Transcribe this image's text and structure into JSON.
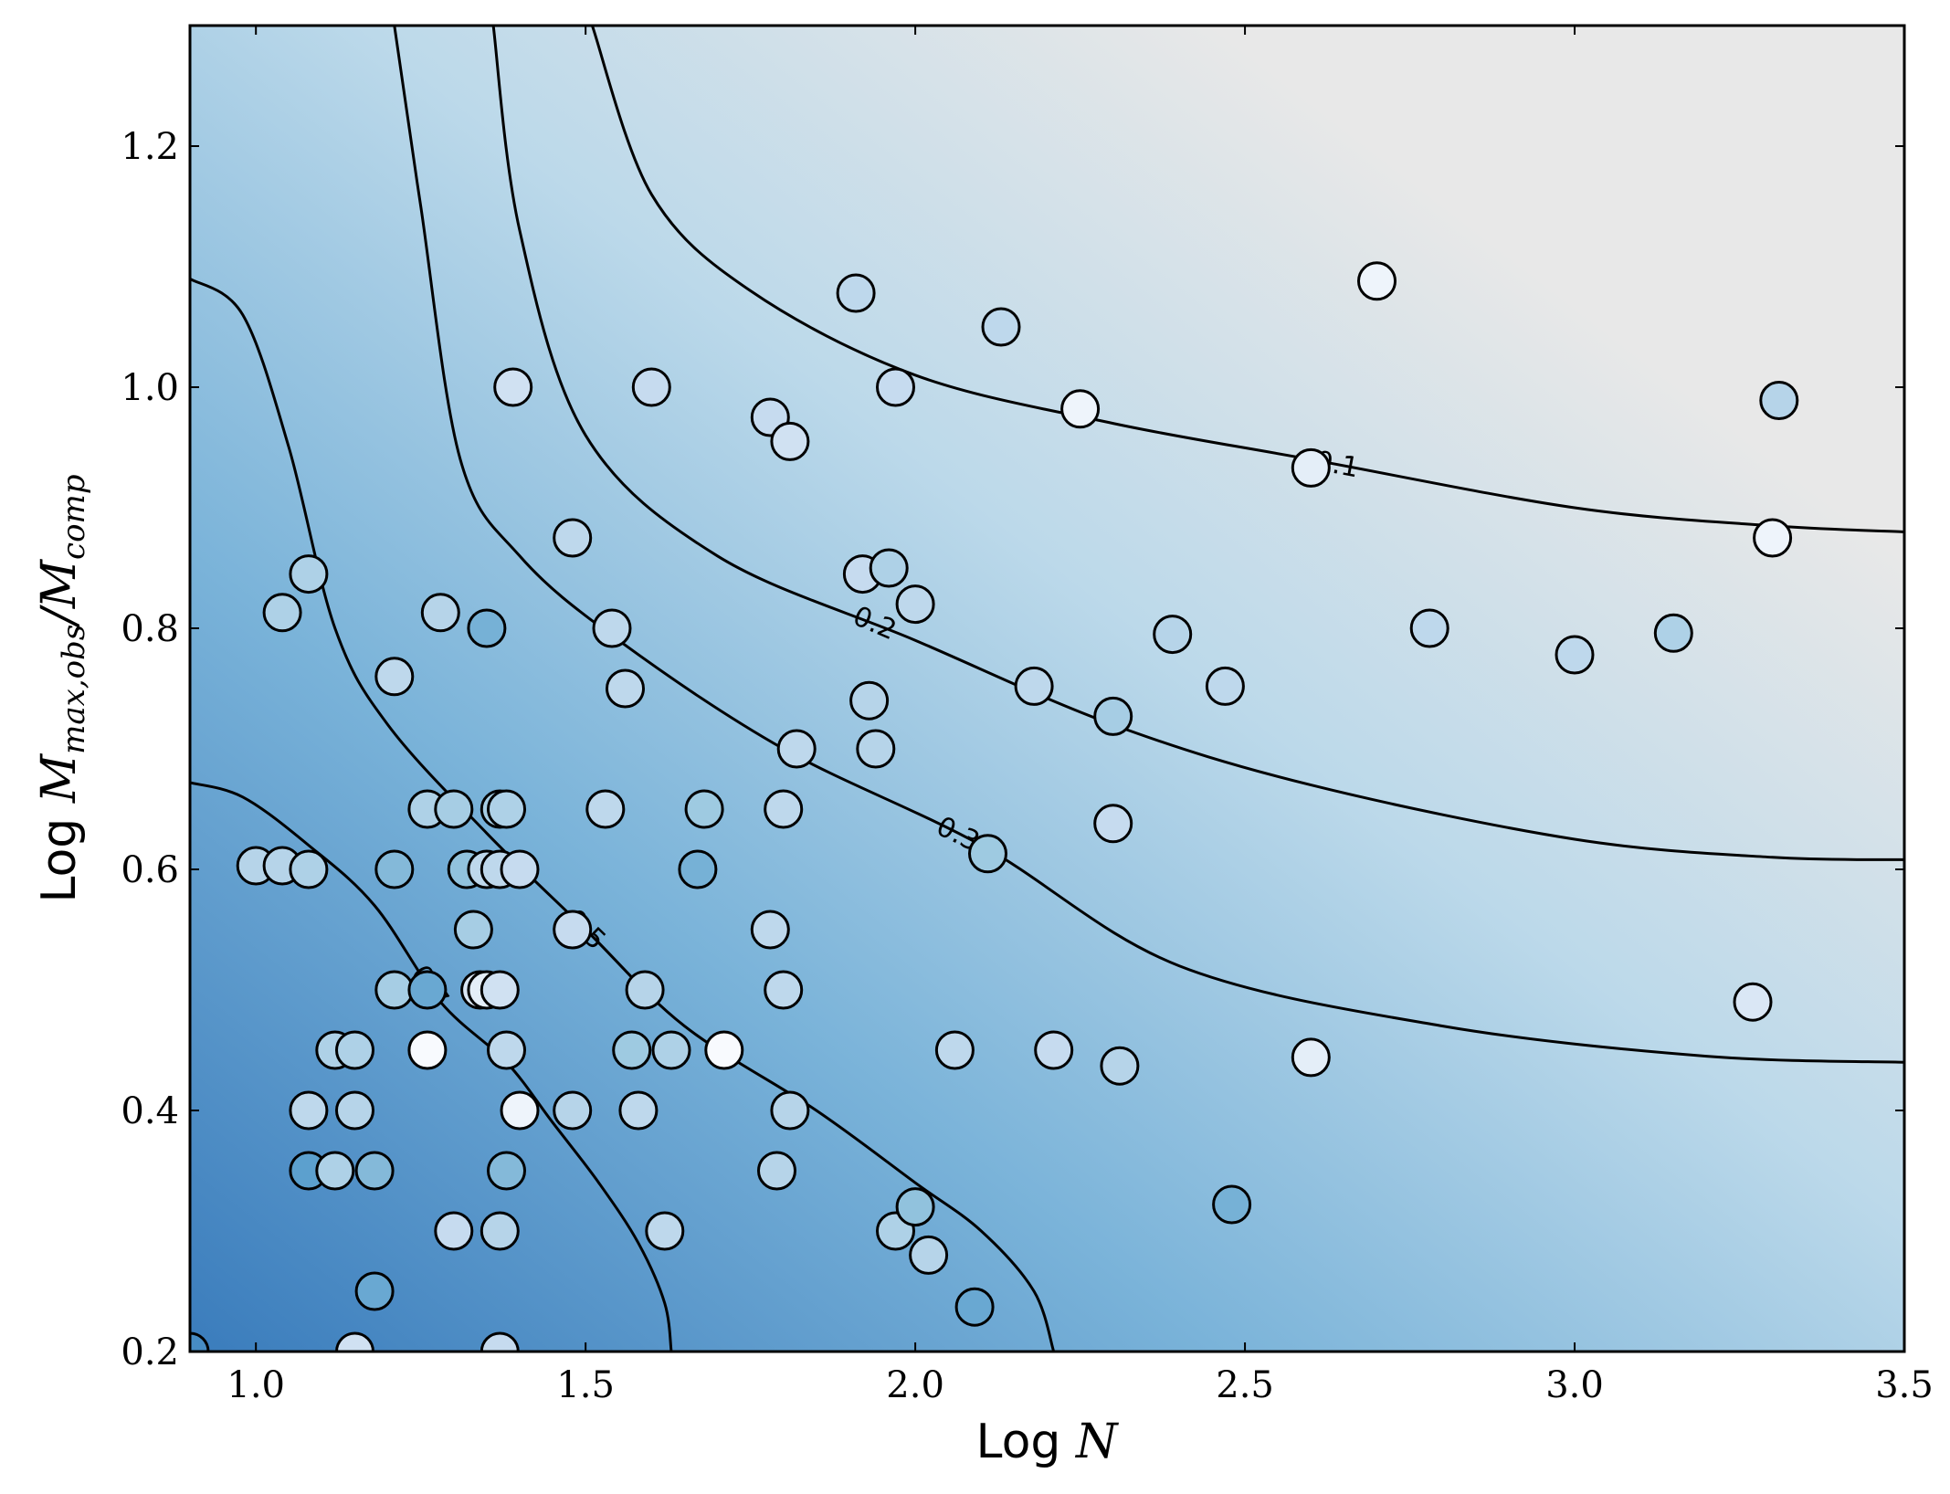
{
  "chart_data": {
    "type": "scatter",
    "title": "",
    "xlabel": {
      "prefix": "Log ",
      "math": "N"
    },
    "ylabel": {
      "prefix": "Log ",
      "math": "M",
      "sub1": "max,obs",
      "slash": "/",
      "math2": "M",
      "sub2": "comp"
    },
    "xlim": [
      0.9,
      3.5
    ],
    "ylim": [
      0.2,
      1.3
    ],
    "xticks": [
      1.0,
      1.5,
      2.0,
      2.5,
      3.0,
      3.5
    ],
    "xtick_labels": [
      "1.0",
      "1.5",
      "2.0",
      "2.5",
      "3.0",
      "3.5"
    ],
    "yticks": [
      0.2,
      0.4,
      0.6,
      0.8,
      1.0,
      1.2
    ],
    "ytick_labels": [
      "0.2",
      "0.4",
      "0.6",
      "0.8",
      "1.0",
      "1.2"
    ],
    "grid": false,
    "legend": "none",
    "colormap": "Blues",
    "colors": {
      "low": "#e8e8e8",
      "mid": "#a6cde3",
      "high": "#3a7cbc",
      "edge": "#000000",
      "contour": "#000000"
    },
    "background_field": "probability level decreasing toward upper right",
    "contours": [
      {
        "level": "0.1",
        "points": [
          [
            1.51,
            1.3
          ],
          [
            1.6,
            1.16
          ],
          [
            1.75,
            1.08
          ],
          [
            2.0,
            1.01
          ],
          [
            2.3,
            0.97
          ],
          [
            2.6,
            0.94
          ],
          [
            3.0,
            0.9
          ],
          [
            3.3,
            0.885
          ],
          [
            3.5,
            0.88
          ]
        ]
      },
      {
        "level": "0.2",
        "points": [
          [
            1.36,
            1.3
          ],
          [
            1.4,
            1.13
          ],
          [
            1.5,
            0.96
          ],
          [
            1.7,
            0.86
          ],
          [
            2.0,
            0.79
          ],
          [
            2.3,
            0.72
          ],
          [
            2.6,
            0.67
          ],
          [
            3.0,
            0.625
          ],
          [
            3.3,
            0.61
          ],
          [
            3.5,
            0.608
          ]
        ]
      },
      {
        "level": "0.3",
        "points": [
          [
            1.21,
            1.3
          ],
          [
            1.25,
            1.15
          ],
          [
            1.31,
            0.94
          ],
          [
            1.4,
            0.86
          ],
          [
            1.55,
            0.79
          ],
          [
            1.8,
            0.7
          ],
          [
            2.1,
            0.62
          ],
          [
            2.4,
            0.52
          ],
          [
            2.8,
            0.47
          ],
          [
            3.2,
            0.445
          ],
          [
            3.5,
            0.44
          ]
        ]
      },
      {
        "level": "0.5",
        "points": [
          [
            0.9,
            1.09
          ],
          [
            0.98,
            1.06
          ],
          [
            1.05,
            0.95
          ],
          [
            1.12,
            0.8
          ],
          [
            1.2,
            0.72
          ],
          [
            1.35,
            0.63
          ],
          [
            1.5,
            0.55
          ],
          [
            1.65,
            0.47
          ],
          [
            1.85,
            0.4
          ],
          [
            2.0,
            0.34
          ],
          [
            2.1,
            0.3
          ],
          [
            2.18,
            0.25
          ],
          [
            2.21,
            0.2
          ]
        ]
      },
      {
        "level": "0.7",
        "points": [
          [
            0.9,
            0.672
          ],
          [
            0.98,
            0.66
          ],
          [
            1.08,
            0.62
          ],
          [
            1.18,
            0.57
          ],
          [
            1.28,
            0.49
          ],
          [
            1.38,
            0.44
          ],
          [
            1.45,
            0.39
          ],
          [
            1.52,
            0.34
          ],
          [
            1.58,
            0.29
          ],
          [
            1.62,
            0.24
          ],
          [
            1.63,
            0.2
          ]
        ]
      }
    ],
    "series": [
      {
        "values": [
          {
            "x": 0.9,
            "y": 0.2,
            "c": 0.85
          },
          {
            "x": 1.0,
            "y": 0.603,
            "c": 0.35
          },
          {
            "x": 1.04,
            "y": 0.603,
            "c": 0.35
          },
          {
            "x": 1.04,
            "y": 0.813,
            "c": 0.4
          },
          {
            "x": 1.08,
            "y": 0.845,
            "c": 0.4
          },
          {
            "x": 1.08,
            "y": 0.6,
            "c": 0.4
          },
          {
            "x": 1.08,
            "y": 0.4,
            "c": 0.3
          },
          {
            "x": 1.08,
            "y": 0.35,
            "c": 0.75
          },
          {
            "x": 1.12,
            "y": 0.45,
            "c": 0.4
          },
          {
            "x": 1.12,
            "y": 0.35,
            "c": 0.4
          },
          {
            "x": 1.15,
            "y": 0.45,
            "c": 0.4
          },
          {
            "x": 1.15,
            "y": 0.4,
            "c": 0.35
          },
          {
            "x": 1.15,
            "y": 0.2,
            "c": 0.2
          },
          {
            "x": 1.18,
            "y": 0.35,
            "c": 0.6
          },
          {
            "x": 1.18,
            "y": 0.25,
            "c": 0.7
          },
          {
            "x": 1.21,
            "y": 0.76,
            "c": 0.3
          },
          {
            "x": 1.21,
            "y": 0.6,
            "c": 0.6
          },
          {
            "x": 1.21,
            "y": 0.5,
            "c": 0.45
          },
          {
            "x": 1.26,
            "y": 0.65,
            "c": 0.4
          },
          {
            "x": 1.26,
            "y": 0.5,
            "c": 0.7
          },
          {
            "x": 1.26,
            "y": 0.45,
            "c": 0.0
          },
          {
            "x": 1.28,
            "y": 0.813,
            "c": 0.35
          },
          {
            "x": 1.3,
            "y": 0.65,
            "c": 0.45
          },
          {
            "x": 1.3,
            "y": 0.3,
            "c": 0.25
          },
          {
            "x": 1.32,
            "y": 0.6,
            "c": 0.55
          },
          {
            "x": 1.33,
            "y": 0.55,
            "c": 0.45
          },
          {
            "x": 1.34,
            "y": 0.5,
            "c": 0.15
          },
          {
            "x": 1.35,
            "y": 0.5,
            "c": 0.1
          },
          {
            "x": 1.35,
            "y": 0.8,
            "c": 0.65
          },
          {
            "x": 1.35,
            "y": 0.6,
            "c": 0.3
          },
          {
            "x": 1.37,
            "y": 0.65,
            "c": 0.45
          },
          {
            "x": 1.37,
            "y": 0.6,
            "c": 0.3
          },
          {
            "x": 1.37,
            "y": 0.5,
            "c": 0.2
          },
          {
            "x": 1.37,
            "y": 0.3,
            "c": 0.35
          },
          {
            "x": 1.37,
            "y": 0.2,
            "c": 0.25
          },
          {
            "x": 1.38,
            "y": 0.65,
            "c": 0.4
          },
          {
            "x": 1.38,
            "y": 0.45,
            "c": 0.3
          },
          {
            "x": 1.38,
            "y": 0.35,
            "c": 0.6
          },
          {
            "x": 1.39,
            "y": 1.0,
            "c": 0.2
          },
          {
            "x": 1.4,
            "y": 0.6,
            "c": 0.25
          },
          {
            "x": 1.4,
            "y": 0.4,
            "c": 0.05
          },
          {
            "x": 1.48,
            "y": 0.875,
            "c": 0.3
          },
          {
            "x": 1.48,
            "y": 0.55,
            "c": 0.25
          },
          {
            "x": 1.48,
            "y": 0.4,
            "c": 0.35
          },
          {
            "x": 1.53,
            "y": 0.65,
            "c": 0.3
          },
          {
            "x": 1.54,
            "y": 0.8,
            "c": 0.3
          },
          {
            "x": 1.56,
            "y": 0.75,
            "c": 0.3
          },
          {
            "x": 1.57,
            "y": 0.45,
            "c": 0.5
          },
          {
            "x": 1.58,
            "y": 0.4,
            "c": 0.3
          },
          {
            "x": 1.59,
            "y": 0.5,
            "c": 0.35
          },
          {
            "x": 1.6,
            "y": 1.0,
            "c": 0.25
          },
          {
            "x": 1.62,
            "y": 0.3,
            "c": 0.3
          },
          {
            "x": 1.63,
            "y": 0.45,
            "c": 0.4
          },
          {
            "x": 1.67,
            "y": 0.6,
            "c": 0.65
          },
          {
            "x": 1.68,
            "y": 0.65,
            "c": 0.5
          },
          {
            "x": 1.71,
            "y": 0.45,
            "c": 0.0
          },
          {
            "x": 1.78,
            "y": 0.975,
            "c": 0.25
          },
          {
            "x": 1.78,
            "y": 0.55,
            "c": 0.3
          },
          {
            "x": 1.79,
            "y": 0.35,
            "c": 0.35
          },
          {
            "x": 1.8,
            "y": 0.5,
            "c": 0.3
          },
          {
            "x": 1.8,
            "y": 0.65,
            "c": 0.3
          },
          {
            "x": 1.81,
            "y": 0.955,
            "c": 0.2
          },
          {
            "x": 1.81,
            "y": 0.4,
            "c": 0.35
          },
          {
            "x": 1.82,
            "y": 0.7,
            "c": 0.3
          },
          {
            "x": 1.91,
            "y": 1.078,
            "c": 0.3
          },
          {
            "x": 1.92,
            "y": 0.845,
            "c": 0.25
          },
          {
            "x": 1.93,
            "y": 0.74,
            "c": 0.35
          },
          {
            "x": 1.94,
            "y": 0.7,
            "c": 0.35
          },
          {
            "x": 1.96,
            "y": 0.85,
            "c": 0.4
          },
          {
            "x": 1.97,
            "y": 1.0,
            "c": 0.25
          },
          {
            "x": 1.97,
            "y": 0.3,
            "c": 0.4
          },
          {
            "x": 2.0,
            "y": 0.82,
            "c": 0.3
          },
          {
            "x": 2.0,
            "y": 0.32,
            "c": 0.55
          },
          {
            "x": 2.02,
            "y": 0.28,
            "c": 0.35
          },
          {
            "x": 2.06,
            "y": 0.45,
            "c": 0.3
          },
          {
            "x": 2.09,
            "y": 0.237,
            "c": 0.7
          },
          {
            "x": 2.11,
            "y": 0.613,
            "c": 0.5
          },
          {
            "x": 2.13,
            "y": 1.05,
            "c": 0.3
          },
          {
            "x": 2.18,
            "y": 0.752,
            "c": 0.3
          },
          {
            "x": 2.21,
            "y": 0.45,
            "c": 0.25
          },
          {
            "x": 2.25,
            "y": 0.982,
            "c": 0.05
          },
          {
            "x": 2.3,
            "y": 0.727,
            "c": 0.45
          },
          {
            "x": 2.3,
            "y": 0.638,
            "c": 0.25
          },
          {
            "x": 2.31,
            "y": 0.437,
            "c": 0.35
          },
          {
            "x": 2.39,
            "y": 0.795,
            "c": 0.35
          },
          {
            "x": 2.47,
            "y": 0.752,
            "c": 0.3
          },
          {
            "x": 2.48,
            "y": 0.322,
            "c": 0.65
          },
          {
            "x": 2.6,
            "y": 0.933,
            "c": 0.1
          },
          {
            "x": 2.6,
            "y": 0.444,
            "c": 0.1
          },
          {
            "x": 2.7,
            "y": 1.088,
            "c": 0.05
          },
          {
            "x": 2.78,
            "y": 0.8,
            "c": 0.3
          },
          {
            "x": 3.0,
            "y": 0.778,
            "c": 0.3
          },
          {
            "x": 3.15,
            "y": 0.796,
            "c": 0.4
          },
          {
            "x": 3.27,
            "y": 0.49,
            "c": 0.15
          },
          {
            "x": 3.3,
            "y": 0.875,
            "c": 0.05
          },
          {
            "x": 3.31,
            "y": 0.989,
            "c": 0.35
          }
        ]
      }
    ]
  }
}
